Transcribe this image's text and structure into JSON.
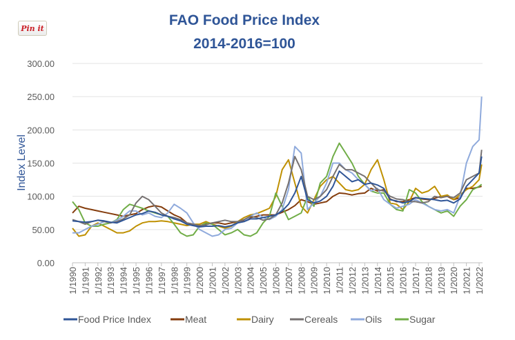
{
  "pin_button": "Pin it",
  "chart_data": {
    "type": "line",
    "title": "FAO Food Price Index",
    "subtitle": "2014-2016=100",
    "xlabel": "",
    "ylabel": "Index Level",
    "ylim": [
      0,
      300
    ],
    "y_ticks": [
      "0.00",
      "50.00",
      "100.00",
      "150.00",
      "200.00",
      "250.00",
      "300.00"
    ],
    "x_tick_labels": [
      "1/1990",
      "1/1991",
      "1/1992",
      "1/1993",
      "1/1994",
      "1/1995",
      "1/1996",
      "1/1997",
      "1/1998",
      "1/1999",
      "1/2000",
      "1/2001",
      "1/2002",
      "1/2003",
      "1/2004",
      "1/2005",
      "1/2006",
      "1/2007",
      "1/2008",
      "1/2009",
      "1/2010",
      "1/2011",
      "1/2012",
      "1/2013",
      "1/2014",
      "1/2015",
      "1/2016",
      "1/2017",
      "1/2018",
      "1/2019",
      "1/2020",
      "1/2021",
      "1/2022"
    ],
    "xlim": [
      1990,
      2022.2
    ],
    "grid": "horizontal",
    "legend_position": "bottom",
    "x": [
      1990,
      1990.5,
      1991,
      1991.5,
      1992,
      1992.5,
      1993,
      1993.5,
      1994,
      1994.5,
      1995,
      1995.5,
      1996,
      1996.5,
      1997,
      1997.5,
      1998,
      1998.5,
      1999,
      1999.5,
      2000,
      2000.5,
      2001,
      2001.5,
      2002,
      2002.5,
      2003,
      2003.5,
      2004,
      2004.5,
      2005,
      2005.5,
      2006,
      2006.5,
      2007,
      2007.5,
      2008,
      2008.5,
      2009,
      2009.5,
      2010,
      2010.5,
      2011,
      2011.5,
      2012,
      2012.5,
      2013,
      2013.5,
      2014,
      2014.5,
      2015,
      2015.5,
      2016,
      2016.5,
      2017,
      2017.5,
      2018,
      2018.5,
      2019,
      2019.5,
      2020,
      2020.5,
      2021,
      2021.5,
      2022,
      2022.2
    ],
    "series": [
      {
        "name": "Meat",
        "color": "#843c0c",
        "values": [
          75,
          85,
          82,
          80,
          78,
          76,
          74,
          72,
          70,
          72,
          74,
          80,
          84,
          86,
          84,
          78,
          72,
          68,
          60,
          58,
          56,
          58,
          60,
          60,
          58,
          60,
          62,
          64,
          68,
          70,
          72,
          72,
          72,
          76,
          80,
          86,
          95,
          92,
          88,
          90,
          92,
          100,
          105,
          104,
          102,
          104,
          105,
          112,
          108,
          110,
          96,
          92,
          92,
          95,
          98,
          96,
          95,
          97,
          100,
          100,
          95,
          98,
          112,
          112,
          114,
          115
        ]
      },
      {
        "name": "Dairy",
        "color": "#bf9000",
        "values": [
          52,
          40,
          42,
          55,
          60,
          55,
          50,
          45,
          45,
          48,
          55,
          60,
          62,
          62,
          63,
          62,
          60,
          58,
          56,
          58,
          58,
          62,
          58,
          55,
          52,
          55,
          62,
          68,
          72,
          74,
          78,
          82,
          100,
          140,
          155,
          120,
          85,
          75,
          95,
          115,
          125,
          130,
          120,
          110,
          108,
          110,
          118,
          140,
          155,
          125,
          90,
          88,
          80,
          92,
          112,
          105,
          108,
          115,
          100,
          102,
          95,
          102,
          110,
          115,
          125,
          148
        ]
      },
      {
        "name": "Sugar",
        "color": "#70ad47",
        "values": [
          92,
          80,
          60,
          55,
          55,
          58,
          60,
          65,
          80,
          88,
          85,
          82,
          78,
          75,
          72,
          70,
          58,
          45,
          40,
          42,
          55,
          60,
          58,
          50,
          42,
          45,
          50,
          42,
          40,
          45,
          60,
          70,
          105,
          85,
          65,
          70,
          75,
          100,
          85,
          120,
          130,
          160,
          180,
          165,
          150,
          130,
          118,
          108,
          105,
          105,
          88,
          80,
          78,
          110,
          105,
          92,
          85,
          80,
          75,
          78,
          70,
          85,
          95,
          110,
          115,
          118
        ]
      },
      {
        "name": "Oils",
        "color": "#8faadc",
        "values": [
          45,
          45,
          50,
          55,
          58,
          62,
          60,
          64,
          70,
          78,
          78,
          72,
          75,
          70,
          68,
          75,
          88,
          82,
          75,
          60,
          50,
          45,
          40,
          42,
          50,
          52,
          60,
          62,
          70,
          75,
          68,
          65,
          70,
          80,
          110,
          175,
          165,
          80,
          90,
          100,
          120,
          150,
          150,
          140,
          135,
          125,
          118,
          108,
          112,
          95,
          88,
          82,
          85,
          88,
          95,
          90,
          85,
          80,
          78,
          80,
          75,
          100,
          150,
          175,
          185,
          250
        ]
      },
      {
        "name": "Cereals",
        "color": "#767171",
        "values": [
          65,
          62,
          58,
          62,
          64,
          62,
          60,
          62,
          66,
          72,
          90,
          100,
          95,
          85,
          75,
          70,
          68,
          65,
          60,
          58,
          56,
          57,
          60,
          62,
          64,
          62,
          62,
          65,
          70,
          68,
          64,
          66,
          72,
          90,
          120,
          160,
          140,
          100,
          95,
          100,
          110,
          130,
          148,
          140,
          140,
          135,
          130,
          120,
          110,
          108,
          100,
          96,
          95,
          92,
          92,
          90,
          92,
          100,
          98,
          100,
          98,
          105,
          125,
          130,
          135,
          170
        ]
      },
      {
        "name": "Food Price Index",
        "color": "#2f5597",
        "values": [
          63,
          62,
          61,
          62,
          64,
          63,
          61,
          60,
          64,
          68,
          72,
          74,
          78,
          76,
          72,
          70,
          66,
          63,
          58,
          56,
          54,
          55,
          55,
          56,
          54,
          56,
          60,
          62,
          66,
          66,
          68,
          70,
          72,
          78,
          88,
          105,
          130,
          95,
          90,
          93,
          100,
          115,
          138,
          130,
          122,
          125,
          118,
          120,
          117,
          112,
          95,
          93,
          90,
          92,
          98,
          97,
          96,
          95,
          93,
          94,
          90,
          96,
          115,
          125,
          135,
          160
        ]
      }
    ],
    "legend": [
      {
        "name": "Food Price Index",
        "color": "#2f5597"
      },
      {
        "name": "Meat",
        "color": "#843c0c"
      },
      {
        "name": "Dairy",
        "color": "#bf9000"
      },
      {
        "name": "Cereals",
        "color": "#767171"
      },
      {
        "name": "Oils",
        "color": "#8faadc"
      },
      {
        "name": "Sugar",
        "color": "#70ad47"
      }
    ]
  }
}
